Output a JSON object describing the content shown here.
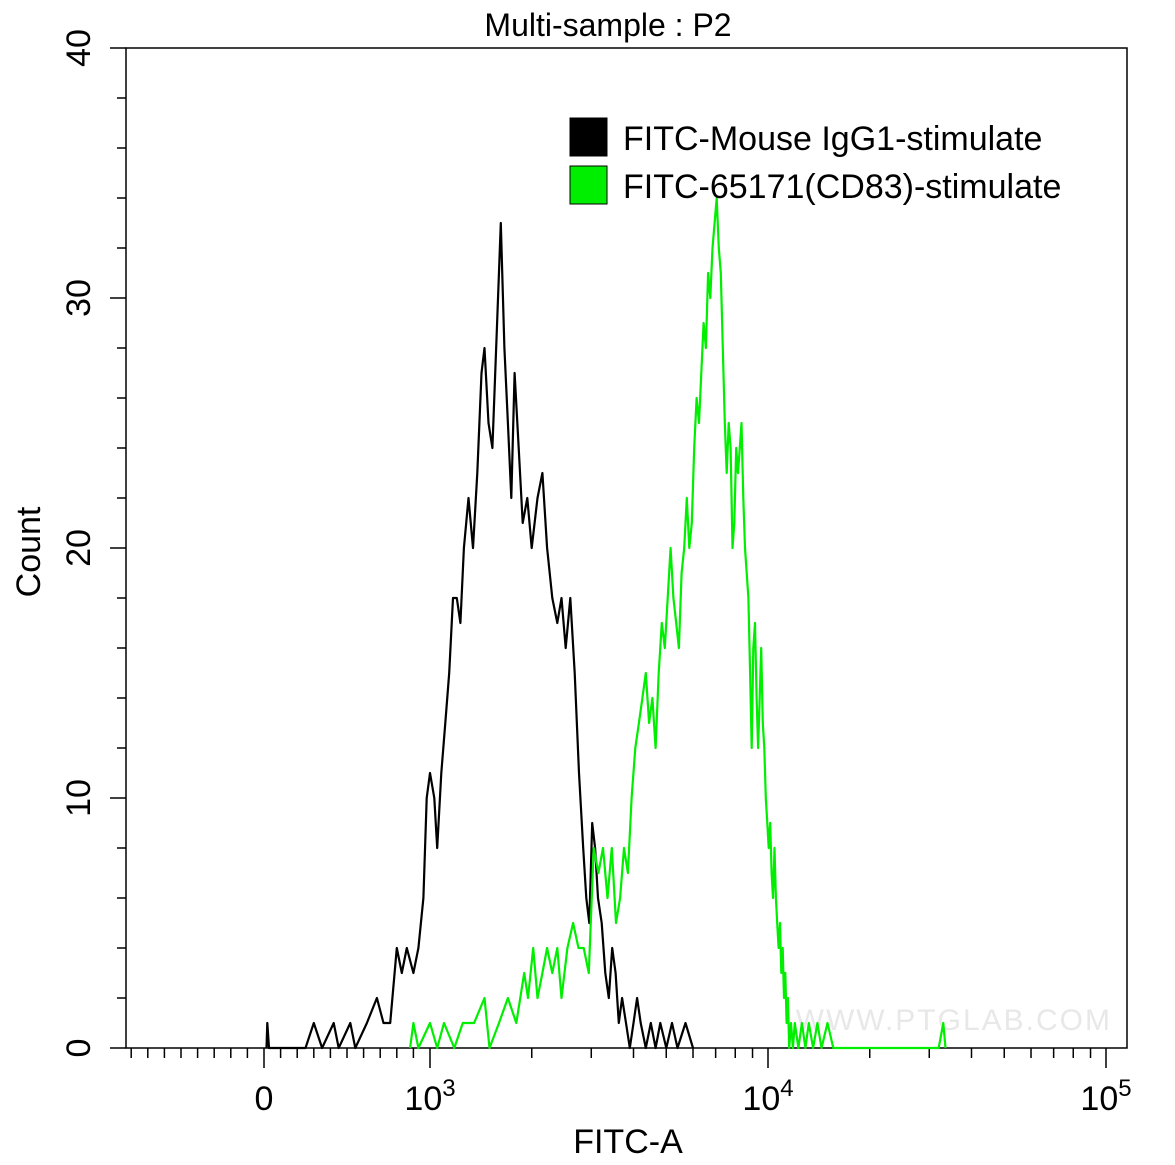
{
  "chart_data": {
    "type": "line",
    "title": "Multi-sample : P2",
    "xlabel": "FITC-A",
    "ylabel": "Count",
    "x_scale": "biexponential (log above 10^3)",
    "ylim": [
      0,
      40
    ],
    "y_ticks": [
      "0",
      "10",
      "20",
      "30",
      "40"
    ],
    "x_ticks": [
      {
        "value": 0,
        "label": "0",
        "exp": ""
      },
      {
        "value": 1000,
        "label": "10",
        "exp": "3"
      },
      {
        "value": 10000,
        "label": "10",
        "exp": "4"
      },
      {
        "value": 100000,
        "label": "10",
        "exp": "5"
      }
    ],
    "grid": false,
    "legend_position": "top-right",
    "watermark": "WWW.PTGLAB.COM",
    "series": [
      {
        "name": "FITC-Mouse IgG1-stimulate",
        "color": "#000000",
        "points": [
          [
            15,
            0
          ],
          [
            20,
            1
          ],
          [
            30,
            0
          ],
          [
            250,
            0
          ],
          [
            300,
            1
          ],
          [
            350,
            0
          ],
          [
            420,
            1
          ],
          [
            450,
            0
          ],
          [
            520,
            1
          ],
          [
            550,
            0
          ],
          [
            620,
            1
          ],
          [
            680,
            2
          ],
          [
            720,
            1
          ],
          [
            760,
            1
          ],
          [
            800,
            4
          ],
          [
            830,
            3
          ],
          [
            860,
            4
          ],
          [
            900,
            3
          ],
          [
            930,
            4
          ],
          [
            960,
            6
          ],
          [
            980,
            10
          ],
          [
            1000,
            11
          ],
          [
            1030,
            10
          ],
          [
            1050,
            8
          ],
          [
            1080,
            11
          ],
          [
            1110,
            13
          ],
          [
            1140,
            15
          ],
          [
            1170,
            18
          ],
          [
            1200,
            18
          ],
          [
            1230,
            17
          ],
          [
            1260,
            20
          ],
          [
            1300,
            22
          ],
          [
            1340,
            20
          ],
          [
            1380,
            23
          ],
          [
            1420,
            27
          ],
          [
            1450,
            28
          ],
          [
            1490,
            25
          ],
          [
            1530,
            24
          ],
          [
            1580,
            29
          ],
          [
            1620,
            33
          ],
          [
            1660,
            28
          ],
          [
            1700,
            25
          ],
          [
            1740,
            22
          ],
          [
            1780,
            27
          ],
          [
            1830,
            24
          ],
          [
            1880,
            21
          ],
          [
            1940,
            22
          ],
          [
            2000,
            20
          ],
          [
            2080,
            22
          ],
          [
            2150,
            23
          ],
          [
            2220,
            20
          ],
          [
            2300,
            18
          ],
          [
            2380,
            17
          ],
          [
            2450,
            18
          ],
          [
            2520,
            16
          ],
          [
            2600,
            18
          ],
          [
            2680,
            15
          ],
          [
            2760,
            11
          ],
          [
            2840,
            8
          ],
          [
            2900,
            6
          ],
          [
            2960,
            5
          ],
          [
            3020,
            9
          ],
          [
            3080,
            8
          ],
          [
            3140,
            6
          ],
          [
            3220,
            5
          ],
          [
            3300,
            3
          ],
          [
            3380,
            2
          ],
          [
            3460,
            4
          ],
          [
            3540,
            3
          ],
          [
            3620,
            1
          ],
          [
            3700,
            2
          ],
          [
            3800,
            1
          ],
          [
            3900,
            0
          ],
          [
            4000,
            1
          ],
          [
            4100,
            2
          ],
          [
            4200,
            1
          ],
          [
            4350,
            0
          ],
          [
            4500,
            1
          ],
          [
            4650,
            0
          ],
          [
            4800,
            1
          ],
          [
            5000,
            0
          ],
          [
            5200,
            1
          ],
          [
            5400,
            0
          ],
          [
            5700,
            1
          ],
          [
            6000,
            0
          ]
        ]
      },
      {
        "name": "FITC-65171(CD83)-stimulate",
        "color": "#00ee00",
        "points": [
          [
            880,
            0
          ],
          [
            900,
            1
          ],
          [
            930,
            0
          ],
          [
            1000,
            1
          ],
          [
            1050,
            0
          ],
          [
            1100,
            1
          ],
          [
            1180,
            0
          ],
          [
            1250,
            1
          ],
          [
            1350,
            1
          ],
          [
            1450,
            2
          ],
          [
            1500,
            0
          ],
          [
            1600,
            1
          ],
          [
            1700,
            2
          ],
          [
            1800,
            1
          ],
          [
            1900,
            3
          ],
          [
            1950,
            2
          ],
          [
            2020,
            4
          ],
          [
            2080,
            2
          ],
          [
            2150,
            3
          ],
          [
            2220,
            4
          ],
          [
            2300,
            3
          ],
          [
            2380,
            4
          ],
          [
            2450,
            2
          ],
          [
            2550,
            4
          ],
          [
            2650,
            5
          ],
          [
            2750,
            4
          ],
          [
            2850,
            4
          ],
          [
            2950,
            3
          ],
          [
            3050,
            8
          ],
          [
            3150,
            7
          ],
          [
            3250,
            8
          ],
          [
            3350,
            6
          ],
          [
            3450,
            8
          ],
          [
            3550,
            5
          ],
          [
            3650,
            6
          ],
          [
            3750,
            8
          ],
          [
            3850,
            7
          ],
          [
            3950,
            10
          ],
          [
            4050,
            12
          ],
          [
            4150,
            13
          ],
          [
            4250,
            14
          ],
          [
            4350,
            15
          ],
          [
            4450,
            13
          ],
          [
            4550,
            14
          ],
          [
            4650,
            12
          ],
          [
            4750,
            15
          ],
          [
            4850,
            17
          ],
          [
            4950,
            16
          ],
          [
            5050,
            18
          ],
          [
            5150,
            20
          ],
          [
            5250,
            18
          ],
          [
            5350,
            17
          ],
          [
            5450,
            16
          ],
          [
            5550,
            19
          ],
          [
            5650,
            20
          ],
          [
            5750,
            22
          ],
          [
            5850,
            20
          ],
          [
            5950,
            21
          ],
          [
            6050,
            24
          ],
          [
            6150,
            26
          ],
          [
            6250,
            25
          ],
          [
            6350,
            27
          ],
          [
            6450,
            29
          ],
          [
            6550,
            28
          ],
          [
            6650,
            31
          ],
          [
            6750,
            30
          ],
          [
            6850,
            32
          ],
          [
            6950,
            33
          ],
          [
            7050,
            34
          ],
          [
            7150,
            32
          ],
          [
            7250,
            31
          ],
          [
            7350,
            28
          ],
          [
            7450,
            25
          ],
          [
            7550,
            23
          ],
          [
            7650,
            25
          ],
          [
            7750,
            24
          ],
          [
            7850,
            20
          ],
          [
            7950,
            21
          ],
          [
            8050,
            24
          ],
          [
            8150,
            23
          ],
          [
            8250,
            24
          ],
          [
            8350,
            25
          ],
          [
            8450,
            22
          ],
          [
            8550,
            20
          ],
          [
            8650,
            19
          ],
          [
            8750,
            18
          ],
          [
            8850,
            15
          ],
          [
            8950,
            12
          ],
          [
            9050,
            16
          ],
          [
            9150,
            17
          ],
          [
            9250,
            14
          ],
          [
            9350,
            12
          ],
          [
            9450,
            14
          ],
          [
            9550,
            16
          ],
          [
            9650,
            13
          ],
          [
            9750,
            12
          ],
          [
            9850,
            10
          ],
          [
            9950,
            9
          ],
          [
            10050,
            8
          ],
          [
            10150,
            9
          ],
          [
            10250,
            7
          ],
          [
            10350,
            6
          ],
          [
            10450,
            8
          ],
          [
            10550,
            6
          ],
          [
            10650,
            5
          ],
          [
            10750,
            4
          ],
          [
            10850,
            5
          ],
          [
            10950,
            3
          ],
          [
            11050,
            4
          ],
          [
            11150,
            2
          ],
          [
            11250,
            3
          ],
          [
            11350,
            1
          ],
          [
            11450,
            2
          ],
          [
            11550,
            0
          ],
          [
            11700,
            1
          ],
          [
            11850,
            0
          ],
          [
            12000,
            1
          ],
          [
            12300,
            0
          ],
          [
            12600,
            1
          ],
          [
            12900,
            0
          ],
          [
            13200,
            1
          ],
          [
            13600,
            0
          ],
          [
            14000,
            1
          ],
          [
            14400,
            0
          ],
          [
            15000,
            1
          ],
          [
            15600,
            0
          ],
          [
            16000,
            0
          ],
          [
            32000,
            0
          ],
          [
            33000,
            1
          ],
          [
            33500,
            0
          ]
        ]
      }
    ]
  }
}
